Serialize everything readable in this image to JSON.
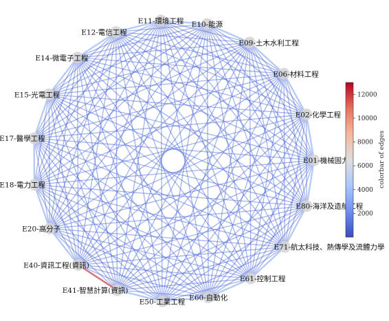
{
  "nodes": [
    {
      "id": "n1",
      "label": "E11-環境工程"
    },
    {
      "id": "n2",
      "label": "E10-能源"
    },
    {
      "id": "n3",
      "label": "E09-土木水利工程"
    },
    {
      "id": "n4",
      "label": "E06-材料工程"
    },
    {
      "id": "n5",
      "label": "E02-化學工程"
    },
    {
      "id": "n6",
      "label": "E01-機械固力"
    },
    {
      "id": "n7",
      "label": "E80-海洋及造船工程"
    },
    {
      "id": "n8",
      "label": "E71-航太科技、熱傳學及流體力學"
    },
    {
      "id": "n9",
      "label": "E61-控制工程"
    },
    {
      "id": "n10",
      "label": "E60-自動化"
    },
    {
      "id": "n11",
      "label": "E50-工業工程"
    },
    {
      "id": "n12",
      "label": "E41-智慧計算(資訊)"
    },
    {
      "id": "n13",
      "label": "E40-資訊工程(資訊)"
    },
    {
      "id": "n14",
      "label": "E20-高分子"
    },
    {
      "id": "n15",
      "label": "E18-電力工程"
    },
    {
      "id": "n16",
      "label": "E17-醫學工程"
    },
    {
      "id": "n17",
      "label": "E15-光電工程"
    },
    {
      "id": "n18",
      "label": "E14-微電子工程"
    },
    {
      "id": "n19",
      "label": "E12-電信工程"
    }
  ],
  "highlighted_edge": {
    "from": "n12",
    "to": "n13",
    "color": "#d9707a"
  },
  "colors": {
    "edge_default": "#4060d8",
    "edge_light": "#a9c2f2",
    "node_fill": "#d6d6d6",
    "colormap": [
      "#3b4cc0",
      "#6f92f3",
      "#aac7fd",
      "#dddddd",
      "#f7b89c",
      "#e7745b",
      "#b40426"
    ]
  },
  "colorbar": {
    "title": "colorbar of edges",
    "range": [
      0,
      13000
    ],
    "ticks": [
      2000,
      4000,
      6000,
      8000,
      10000,
      12000
    ]
  }
}
